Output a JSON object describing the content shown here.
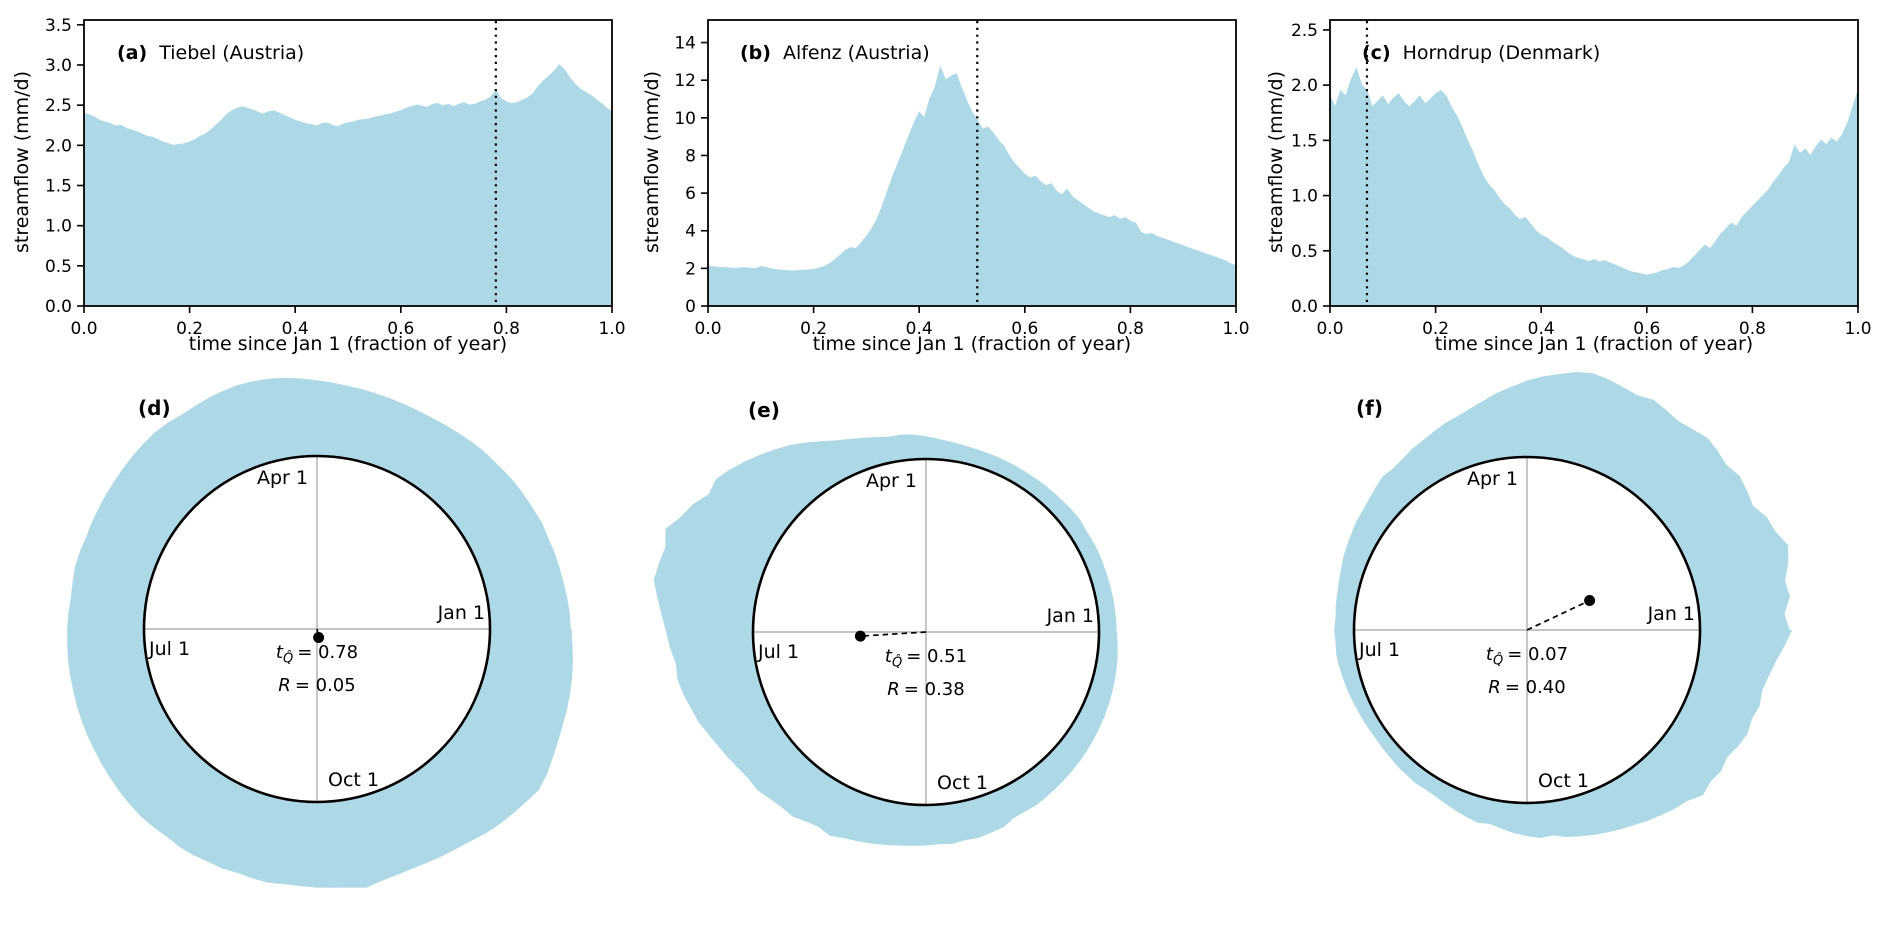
{
  "figure": {
    "background": "#ffffff",
    "area_fill": "#ADD8E6",
    "axis_color": "#000000",
    "crosshair_color": "#a0a0a0"
  },
  "chart_data": [
    {
      "id": "a",
      "type": "area",
      "panel_label": "(a)",
      "title": "Tiebel (Austria)",
      "xlabel": "time since Jan 1 (fraction of year)",
      "ylabel": "streamflow (mm/d)",
      "xlim": [
        0,
        1
      ],
      "ylim": [
        0,
        3.5
      ],
      "ylim_draw": 3.56,
      "xtick_labels": [
        "0.0",
        "0.2",
        "0.4",
        "0.6",
        "0.8",
        "1.0"
      ],
      "xtick_values": [
        0,
        0.2,
        0.4,
        0.6,
        0.8,
        1.0
      ],
      "ytick_labels": [
        "0.0",
        "0.5",
        "1.0",
        "1.5",
        "2.0",
        "2.5",
        "3.0",
        "3.5"
      ],
      "ytick_values": [
        0,
        0.5,
        1.0,
        1.5,
        2.0,
        2.5,
        3.0,
        3.5
      ],
      "vline_x": 0.78,
      "x_start": 0,
      "x_step": 0.01,
      "values": [
        2.4,
        2.38,
        2.35,
        2.31,
        2.29,
        2.27,
        2.24,
        2.25,
        2.21,
        2.19,
        2.17,
        2.14,
        2.11,
        2.1,
        2.07,
        2.04,
        2.02,
        2.0,
        2.01,
        2.02,
        2.04,
        2.07,
        2.11,
        2.14,
        2.19,
        2.25,
        2.31,
        2.38,
        2.43,
        2.46,
        2.48,
        2.46,
        2.44,
        2.41,
        2.39,
        2.42,
        2.43,
        2.4,
        2.37,
        2.34,
        2.31,
        2.29,
        2.27,
        2.26,
        2.24,
        2.27,
        2.28,
        2.25,
        2.23,
        2.26,
        2.28,
        2.29,
        2.31,
        2.32,
        2.33,
        2.35,
        2.36,
        2.38,
        2.39,
        2.41,
        2.43,
        2.46,
        2.48,
        2.5,
        2.49,
        2.47,
        2.51,
        2.52,
        2.49,
        2.51,
        2.48,
        2.51,
        2.53,
        2.5,
        2.51,
        2.54,
        2.56,
        2.6,
        2.68,
        2.58,
        2.54,
        2.52,
        2.53,
        2.56,
        2.59,
        2.64,
        2.73,
        2.8,
        2.86,
        2.92,
        3.0,
        2.94,
        2.84,
        2.76,
        2.7,
        2.66,
        2.62,
        2.57,
        2.52,
        2.46,
        2.42
      ]
    },
    {
      "id": "b",
      "type": "area",
      "panel_label": "(b)",
      "title": "Alfenz (Austria)",
      "xlabel": "time since Jan 1 (fraction of year)",
      "ylabel": "streamflow (mm/d)",
      "xlim": [
        0,
        1
      ],
      "ylim": [
        0,
        14
      ],
      "ylim_draw": 15.2,
      "xtick_labels": [
        "0.0",
        "0.2",
        "0.4",
        "0.6",
        "0.8",
        "1.0"
      ],
      "xtick_values": [
        0,
        0.2,
        0.4,
        0.6,
        0.8,
        1.0
      ],
      "ytick_labels": [
        "0",
        "2",
        "4",
        "6",
        "8",
        "10",
        "12",
        "14"
      ],
      "ytick_values": [
        0,
        2,
        4,
        6,
        8,
        10,
        12,
        14
      ],
      "vline_x": 0.51,
      "x_start": 0,
      "x_step": 0.01,
      "values": [
        2.1,
        2.08,
        2.05,
        2.04,
        2.02,
        2.0,
        2.02,
        2.04,
        2.01,
        1.98,
        2.1,
        2.05,
        1.98,
        1.92,
        1.9,
        1.88,
        1.86,
        1.88,
        1.9,
        1.92,
        1.95,
        2.0,
        2.1,
        2.25,
        2.45,
        2.7,
        2.95,
        3.1,
        3.05,
        3.35,
        3.7,
        4.1,
        4.6,
        5.3,
        6.1,
        6.9,
        7.6,
        8.3,
        9.0,
        9.7,
        10.3,
        10.0,
        11.0,
        11.6,
        12.7,
        12.0,
        12.2,
        12.35,
        11.6,
        10.9,
        10.3,
        9.9,
        9.4,
        9.5,
        9.2,
        8.8,
        8.5,
        8.0,
        7.6,
        7.3,
        7.0,
        6.8,
        6.9,
        6.6,
        6.4,
        6.5,
        6.1,
        5.9,
        6.2,
        5.8,
        5.6,
        5.4,
        5.2,
        5.0,
        4.9,
        4.8,
        4.7,
        4.8,
        4.6,
        4.7,
        4.5,
        4.4,
        3.9,
        3.8,
        3.85,
        3.7,
        3.6,
        3.5,
        3.4,
        3.3,
        3.2,
        3.1,
        3.0,
        2.9,
        2.8,
        2.7,
        2.6,
        2.5,
        2.4,
        2.25,
        2.15
      ]
    },
    {
      "id": "c",
      "type": "area",
      "panel_label": "(c)",
      "title": "Horndrup (Denmark)",
      "xlabel": "time since Jan 1 (fraction of year)",
      "ylabel": "streamflow (mm/d)",
      "xlim": [
        0,
        1
      ],
      "ylim": [
        0,
        2.5
      ],
      "ylim_draw": 2.59,
      "xtick_labels": [
        "0.0",
        "0.2",
        "0.4",
        "0.6",
        "0.8",
        "1.0"
      ],
      "xtick_values": [
        0,
        0.2,
        0.4,
        0.6,
        0.8,
        1.0
      ],
      "ytick_labels": [
        "0.0",
        "0.5",
        "1.0",
        "1.5",
        "2.0",
        "2.5"
      ],
      "ytick_values": [
        0,
        0.5,
        1.0,
        1.5,
        2.0,
        2.5
      ],
      "vline_x": 0.07,
      "x_start": 0,
      "x_step": 0.01,
      "values": [
        1.9,
        1.8,
        1.95,
        1.9,
        2.05,
        2.15,
        2.0,
        1.95,
        1.8,
        1.85,
        1.9,
        1.82,
        1.88,
        1.92,
        1.85,
        1.8,
        1.85,
        1.9,
        1.83,
        1.87,
        1.92,
        1.95,
        1.9,
        1.8,
        1.72,
        1.62,
        1.5,
        1.4,
        1.28,
        1.18,
        1.1,
        1.05,
        0.98,
        0.92,
        0.88,
        0.82,
        0.78,
        0.8,
        0.74,
        0.68,
        0.64,
        0.62,
        0.58,
        0.55,
        0.52,
        0.48,
        0.45,
        0.43,
        0.42,
        0.4,
        0.42,
        0.4,
        0.41,
        0.39,
        0.37,
        0.35,
        0.33,
        0.31,
        0.3,
        0.29,
        0.28,
        0.29,
        0.3,
        0.32,
        0.33,
        0.35,
        0.34,
        0.36,
        0.4,
        0.45,
        0.5,
        0.55,
        0.52,
        0.58,
        0.65,
        0.7,
        0.75,
        0.72,
        0.8,
        0.85,
        0.9,
        0.95,
        1.0,
        1.05,
        1.12,
        1.18,
        1.25,
        1.3,
        1.45,
        1.38,
        1.42,
        1.36,
        1.44,
        1.5,
        1.46,
        1.52,
        1.48,
        1.55,
        1.65,
        1.8,
        1.95
      ]
    },
    {
      "id": "d",
      "type": "polar-ring",
      "panel_label": "(d)",
      "series_ref": 0,
      "month_labels": {
        "right": "Jan 1",
        "top": "Apr 1",
        "left": "Jul 1",
        "bottom": "Oct 1"
      },
      "t_peak": 0.78,
      "R": 0.05,
      "annotation": {
        "t_sym": "t",
        "t_sub": "Q̂",
        "t_eq": "= 0.78",
        "r_sym": "R",
        "r_eq": "= 0.05"
      }
    },
    {
      "id": "e",
      "type": "polar-ring",
      "panel_label": "(e)",
      "series_ref": 1,
      "month_labels": {
        "right": "Jan 1",
        "top": "Apr 1",
        "left": "Jul 1",
        "bottom": "Oct 1"
      },
      "t_peak": 0.51,
      "R": 0.38,
      "annotation": {
        "t_sym": "t",
        "t_sub": "Q̂",
        "t_eq": "= 0.51",
        "r_sym": "R",
        "r_eq": "= 0.38"
      }
    },
    {
      "id": "f",
      "type": "polar-ring",
      "panel_label": "(f)",
      "series_ref": 2,
      "month_labels": {
        "right": "Jan 1",
        "top": "Apr 1",
        "left": "Jul 1",
        "bottom": "Oct 1"
      },
      "t_peak": 0.07,
      "R": 0.4,
      "annotation": {
        "t_sym": "t",
        "t_sub": "Q̂",
        "t_eq": "= 0.07",
        "r_sym": "R",
        "r_eq": "= 0.40"
      }
    }
  ]
}
